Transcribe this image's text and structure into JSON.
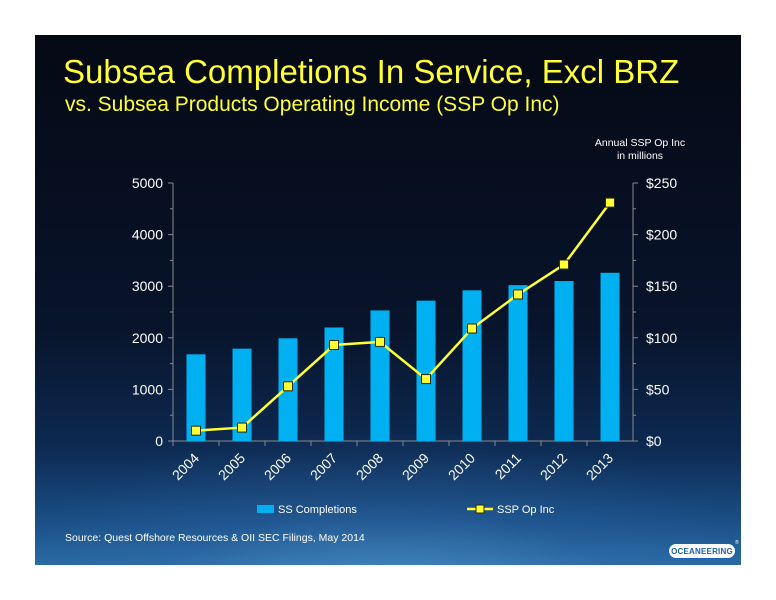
{
  "slide": {
    "title": "Subsea Completions In Service, Excl BRZ",
    "subtitle": "vs. Subsea Products Operating Income (SSP Op Inc)",
    "right_axis_note_line1": "Annual SSP Op Inc",
    "right_axis_note_line2": "in millions",
    "source": "Source:  Quest Offshore Resources & OII SEC Filings, May 2014",
    "logo_text": "OCEANEERING",
    "logo_mark": "®"
  },
  "chart_data": {
    "type": "bar",
    "categories": [
      "2004",
      "2005",
      "2006",
      "2007",
      "2008",
      "2009",
      "2010",
      "2011",
      "2012",
      "2013"
    ],
    "series": [
      {
        "name": "SS Completions",
        "type": "bar",
        "axis": "left",
        "color": "#00b0f0",
        "values": [
          1680,
          1790,
          1990,
          2200,
          2530,
          2720,
          2920,
          3020,
          3100,
          3260
        ]
      },
      {
        "name": "SSP Op Inc",
        "type": "line",
        "axis": "right",
        "color": "#ffff33",
        "marker": "square",
        "values": [
          10,
          13,
          53,
          93,
          96,
          60,
          109,
          142,
          171,
          231
        ]
      }
    ],
    "y_left": {
      "min": 0,
      "max": 5000,
      "ticks": [
        "0",
        "1000",
        "2000",
        "3000",
        "4000",
        "5000"
      ]
    },
    "y_right": {
      "min": 0,
      "max": 250,
      "ticks": [
        "$0",
        "$50",
        "$100",
        "$150",
        "$200",
        "$250"
      ]
    },
    "legend_position": "bottom",
    "grid": false
  }
}
